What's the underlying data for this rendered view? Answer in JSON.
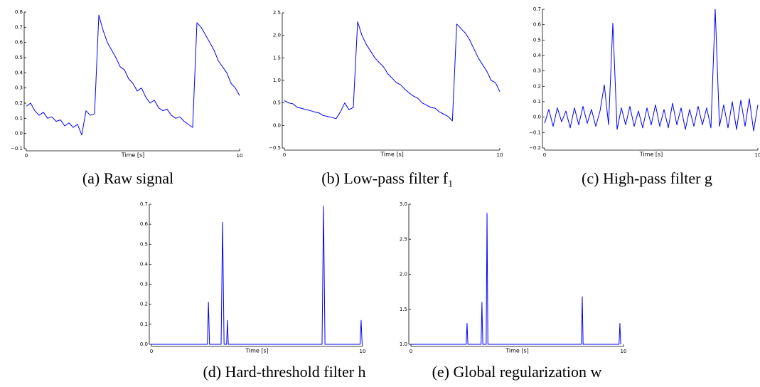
{
  "chart_data": [
    {
      "type": "line",
      "caption": "(a) Raw signal",
      "xlabel": "Time [s]",
      "color": "#0000ff",
      "xlim": [
        0,
        10
      ],
      "xticks": [
        0,
        10
      ],
      "ylim": [
        -0.1,
        0.8
      ],
      "yticks": [
        {
          "value": -0.1,
          "label": "−0.1"
        },
        {
          "value": 0,
          "label": "0.0"
        },
        0.1,
        0.2,
        0.3,
        0.4,
        0.5,
        0.6,
        0.7,
        0.8
      ],
      "x": [
        0,
        0.2,
        0.4,
        0.6,
        0.8,
        1,
        1.2,
        1.4,
        1.6,
        1.8,
        2,
        2.2,
        2.4,
        2.6,
        2.8,
        3,
        3.2,
        3.4,
        3.6,
        3.8,
        4,
        4.2,
        4.4,
        4.6,
        4.8,
        5,
        5.2,
        5.4,
        5.6,
        5.8,
        6,
        6.2,
        6.4,
        6.6,
        6.8,
        7,
        7.2,
        7.4,
        7.6,
        7.8,
        8,
        8.2,
        8.4,
        8.6,
        8.8,
        9,
        9.2,
        9.4,
        9.6,
        9.8,
        10
      ],
      "values": [
        0.18,
        0.2,
        0.15,
        0.12,
        0.14,
        0.1,
        0.11,
        0.08,
        0.09,
        0.05,
        0.07,
        0.04,
        0.06,
        -0.01,
        0.15,
        0.12,
        0.13,
        0.78,
        0.68,
        0.6,
        0.55,
        0.5,
        0.44,
        0.42,
        0.36,
        0.33,
        0.28,
        0.3,
        0.24,
        0.2,
        0.22,
        0.17,
        0.15,
        0.16,
        0.12,
        0.1,
        0.11,
        0.08,
        0.06,
        0.04,
        0.73,
        0.7,
        0.65,
        0.6,
        0.55,
        0.48,
        0.44,
        0.4,
        0.33,
        0.3,
        0.25
      ]
    },
    {
      "type": "line",
      "caption": "(b) Low-pass filter f₁",
      "xlabel": "Time [s]",
      "color": "#0000ff",
      "xlim": [
        0,
        10
      ],
      "xticks": [
        0,
        10
      ],
      "ylim": [
        -0.5,
        2.5
      ],
      "yticks": [
        {
          "value": -0.5,
          "label": "−0.5"
        },
        {
          "value": 0,
          "label": "0.0"
        },
        0.5,
        {
          "value": 1,
          "label": "1.0"
        },
        1.5,
        {
          "value": 2,
          "label": "2.0"
        },
        2.5
      ],
      "x": [
        0,
        0.2,
        0.4,
        0.6,
        0.8,
        1,
        1.2,
        1.4,
        1.6,
        1.8,
        2,
        2.2,
        2.4,
        2.6,
        2.8,
        3,
        3.2,
        3.4,
        3.6,
        3.8,
        4,
        4.2,
        4.4,
        4.6,
        4.8,
        5,
        5.2,
        5.4,
        5.6,
        5.8,
        6,
        6.2,
        6.4,
        6.6,
        6.8,
        7,
        7.2,
        7.4,
        7.6,
        7.8,
        8,
        8.2,
        8.4,
        8.6,
        8.8,
        9,
        9.2,
        9.4,
        9.6,
        9.8,
        10
      ],
      "values": [
        0.55,
        0.5,
        0.48,
        0.4,
        0.38,
        0.35,
        0.33,
        0.3,
        0.28,
        0.22,
        0.2,
        0.18,
        0.15,
        0.3,
        0.5,
        0.35,
        0.4,
        2.3,
        2.0,
        1.8,
        1.65,
        1.5,
        1.4,
        1.3,
        1.15,
        1.05,
        0.95,
        0.9,
        0.8,
        0.72,
        0.65,
        0.6,
        0.5,
        0.45,
        0.4,
        0.38,
        0.3,
        0.25,
        0.2,
        0.1,
        2.25,
        2.15,
        2.05,
        1.9,
        1.7,
        1.5,
        1.35,
        1.2,
        1.0,
        0.95,
        0.75
      ]
    },
    {
      "type": "line",
      "caption": "(c) High-pass filter g",
      "xlabel": "Time [s]",
      "color": "#0000ff",
      "xlim": [
        0,
        10
      ],
      "xticks": [
        0,
        10
      ],
      "ylim": [
        -0.2,
        0.7
      ],
      "yticks": [
        {
          "value": -0.2,
          "label": "−0.2"
        },
        {
          "value": -0.1,
          "label": "−0.1"
        },
        {
          "value": 0,
          "label": "0.0"
        },
        0.1,
        0.2,
        0.3,
        0.4,
        0.5,
        0.6,
        0.7
      ],
      "x": [
        0,
        0.2,
        0.4,
        0.6,
        0.8,
        1,
        1.2,
        1.4,
        1.6,
        1.8,
        2,
        2.2,
        2.4,
        2.6,
        2.8,
        3,
        3.2,
        3.4,
        3.6,
        3.8,
        4,
        4.2,
        4.4,
        4.6,
        4.8,
        5,
        5.2,
        5.4,
        5.6,
        5.8,
        6,
        6.2,
        6.4,
        6.6,
        6.8,
        7,
        7.2,
        7.4,
        7.6,
        7.8,
        8,
        8.2,
        8.4,
        8.6,
        8.8,
        9,
        9.2,
        9.4,
        9.6,
        9.8,
        10
      ],
      "values": [
        -0.04,
        0.05,
        -0.06,
        0.06,
        -0.03,
        0.04,
        -0.07,
        0.06,
        -0.05,
        0.07,
        -0.04,
        0.05,
        -0.06,
        0.04,
        0.21,
        -0.05,
        0.61,
        -0.08,
        0.06,
        -0.05,
        0.07,
        -0.06,
        0.04,
        -0.07,
        0.06,
        -0.05,
        0.08,
        -0.06,
        0.05,
        -0.07,
        0.09,
        -0.05,
        0.06,
        -0.08,
        0.05,
        -0.06,
        0.07,
        -0.05,
        0.06,
        -0.07,
        0.7,
        -0.06,
        0.08,
        -0.07,
        0.1,
        -0.08,
        0.11,
        -0.06,
        0.12,
        -0.09,
        0.08
      ]
    },
    {
      "type": "line",
      "caption": "(d) Hard-threshold filter h",
      "xlabel": "Time [s]",
      "color": "#0000ff",
      "xlim": [
        0,
        10
      ],
      "xticks": [
        0,
        10
      ],
      "ylim": [
        0,
        0.7
      ],
      "yticks": [
        {
          "value": 0,
          "label": "0.0"
        },
        0.1,
        0.2,
        0.3,
        0.4,
        0.5,
        0.6,
        0.7
      ],
      "x": [
        0,
        2.65,
        2.7,
        2.75,
        3.3,
        3.37,
        3.44,
        3.56,
        3.6,
        3.64,
        8.08,
        8.15,
        8.22,
        9.88,
        9.93,
        9.98
      ],
      "values": [
        0,
        0,
        0.21,
        0,
        0,
        0.61,
        0,
        0,
        0.12,
        0,
        0,
        0.69,
        0,
        0,
        0.12,
        0
      ]
    },
    {
      "type": "line",
      "caption": "(e) Global regularization w",
      "xlabel": "Time [s]",
      "color": "#0000ff",
      "xlim": [
        0,
        10
      ],
      "xticks": [
        0,
        10
      ],
      "ylim": [
        1,
        3
      ],
      "yticks": [
        {
          "value": 1,
          "label": "1.0"
        },
        1.5,
        {
          "value": 2,
          "label": "2.0"
        },
        2.5,
        {
          "value": 3,
          "label": "3.0"
        }
      ],
      "x": [
        0,
        2.6,
        2.64,
        2.68,
        3.3,
        3.34,
        3.38,
        3.54,
        3.58,
        3.62,
        8.02,
        8.06,
        8.1,
        9.79,
        9.83,
        9.87
      ],
      "values": [
        1,
        1,
        1.3,
        1,
        1,
        1.6,
        1,
        1,
        2.87,
        1,
        1,
        1.68,
        1,
        1,
        1.3,
        1
      ]
    }
  ]
}
